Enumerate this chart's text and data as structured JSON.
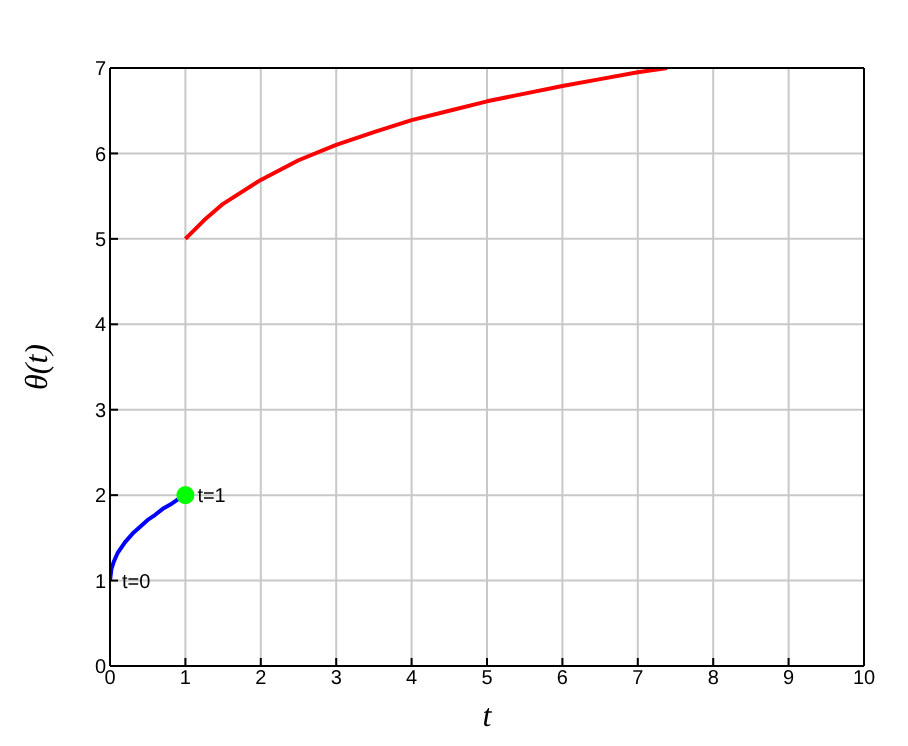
{
  "chart_data": {
    "type": "line",
    "xlabel": "t",
    "ylabel": "θ(t)",
    "xlim": [
      0,
      10
    ],
    "ylim": [
      0,
      7
    ],
    "xticks": [
      0,
      1,
      2,
      3,
      4,
      5,
      6,
      7,
      8,
      9,
      10
    ],
    "yticks": [
      0,
      1,
      2,
      3,
      4,
      5,
      6,
      7
    ],
    "grid": true,
    "line_style": "solid",
    "marker": "none",
    "series": [
      {
        "color": "#0000ff",
        "x": [
          0,
          0.02,
          0.05,
          0.1,
          0.2,
          0.3,
          0.4,
          0.5,
          0.6,
          0.7,
          0.8,
          0.9,
          1
        ],
        "values": [
          1,
          1.14,
          1.22,
          1.32,
          1.45,
          1.55,
          1.63,
          1.71,
          1.77,
          1.84,
          1.89,
          1.95,
          2
        ]
      },
      {
        "color": "#ff0000",
        "x": [
          1,
          1.25,
          1.5,
          2,
          2.5,
          3,
          3.5,
          4,
          4.5,
          5,
          5.5,
          6,
          6.5,
          7,
          7.39
        ],
        "values": [
          5,
          5.22,
          5.41,
          5.69,
          5.92,
          6.1,
          6.25,
          6.39,
          6.5,
          6.61,
          6.7,
          6.79,
          6.87,
          6.95,
          7
        ]
      },
      {
        "type": "scatter",
        "color": "#00ff00",
        "marker": "circle",
        "x": [
          1
        ],
        "values": [
          2
        ]
      }
    ],
    "annotations": [
      {
        "text": "t=0",
        "x": 0,
        "y": 1
      },
      {
        "text": "t=1",
        "x": 1,
        "y": 2
      }
    ]
  }
}
